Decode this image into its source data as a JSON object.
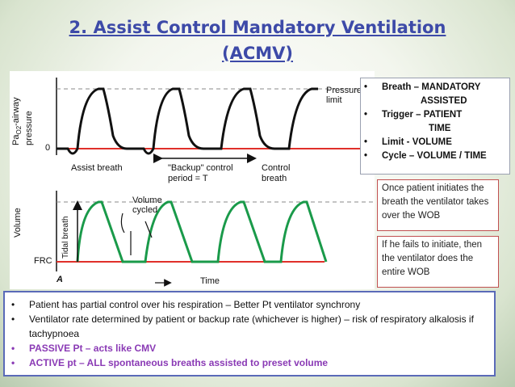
{
  "title": {
    "line1": "2. Assist Control Mandatory Ventilation",
    "line2": "(ACMV)"
  },
  "diagram": {
    "top_ylabel": "Pa",
    "top_ylabel_sub": "O2",
    "top_ylabel_rest": "-airway pressure",
    "zero_label": "0",
    "pressure_limit": [
      "Pressure",
      "limit"
    ],
    "assist_breath": "Assist breath",
    "backup_period": [
      "\"Backup\" control",
      "period = T"
    ],
    "control_breath": [
      "Control",
      "breath"
    ],
    "bottom_ylabel": "Volume",
    "tidal_label": "Tidal breath",
    "volume_cycled": [
      "Volume",
      "cycled"
    ],
    "frc_label": "FRC",
    "panel_label": "A",
    "time_label": "Time",
    "colors": {
      "pressure_trace": "#111111",
      "volume_trace": "#1a9a4a",
      "baseline": "#e0302a"
    }
  },
  "bullets": [
    {
      "bullet": "•",
      "text": "Breath – MANDATORY"
    },
    {
      "bullet": "",
      "text": "ASSISTED",
      "indent": "indent"
    },
    {
      "bullet": "•",
      "text": "Trigger – PATIENT"
    },
    {
      "bullet": "",
      "text": "TIME",
      "indent": "indent2"
    },
    {
      "bullet": "•",
      "text": "Limit - VOLUME"
    },
    {
      "bullet": "•",
      "text": "Cycle – VOLUME / TIME"
    }
  ],
  "note1": "Once patient initiates the breath the ventilator takes over the WOB",
  "note2": "If he fails to initiate, then the ventilator does the entire WOB",
  "bottom_bullets": [
    {
      "bullet": "•",
      "text": "Patient has partial control over his respiration – Better Pt ventilator synchrony",
      "style": ""
    },
    {
      "bullet": "•",
      "text": "Ventilator rate determined by patient or backup rate (whichever is higher) – risk of respiratory alkalosis if tachypnoea",
      "style": ""
    },
    {
      "bullet": "•",
      "text": "PASSIVE Pt – acts like CMV",
      "style": "purple"
    },
    {
      "bullet": "•",
      "text": "ACTIVE pt – ALL spontaneous breaths assisted to preset volume",
      "style": "purple"
    }
  ]
}
